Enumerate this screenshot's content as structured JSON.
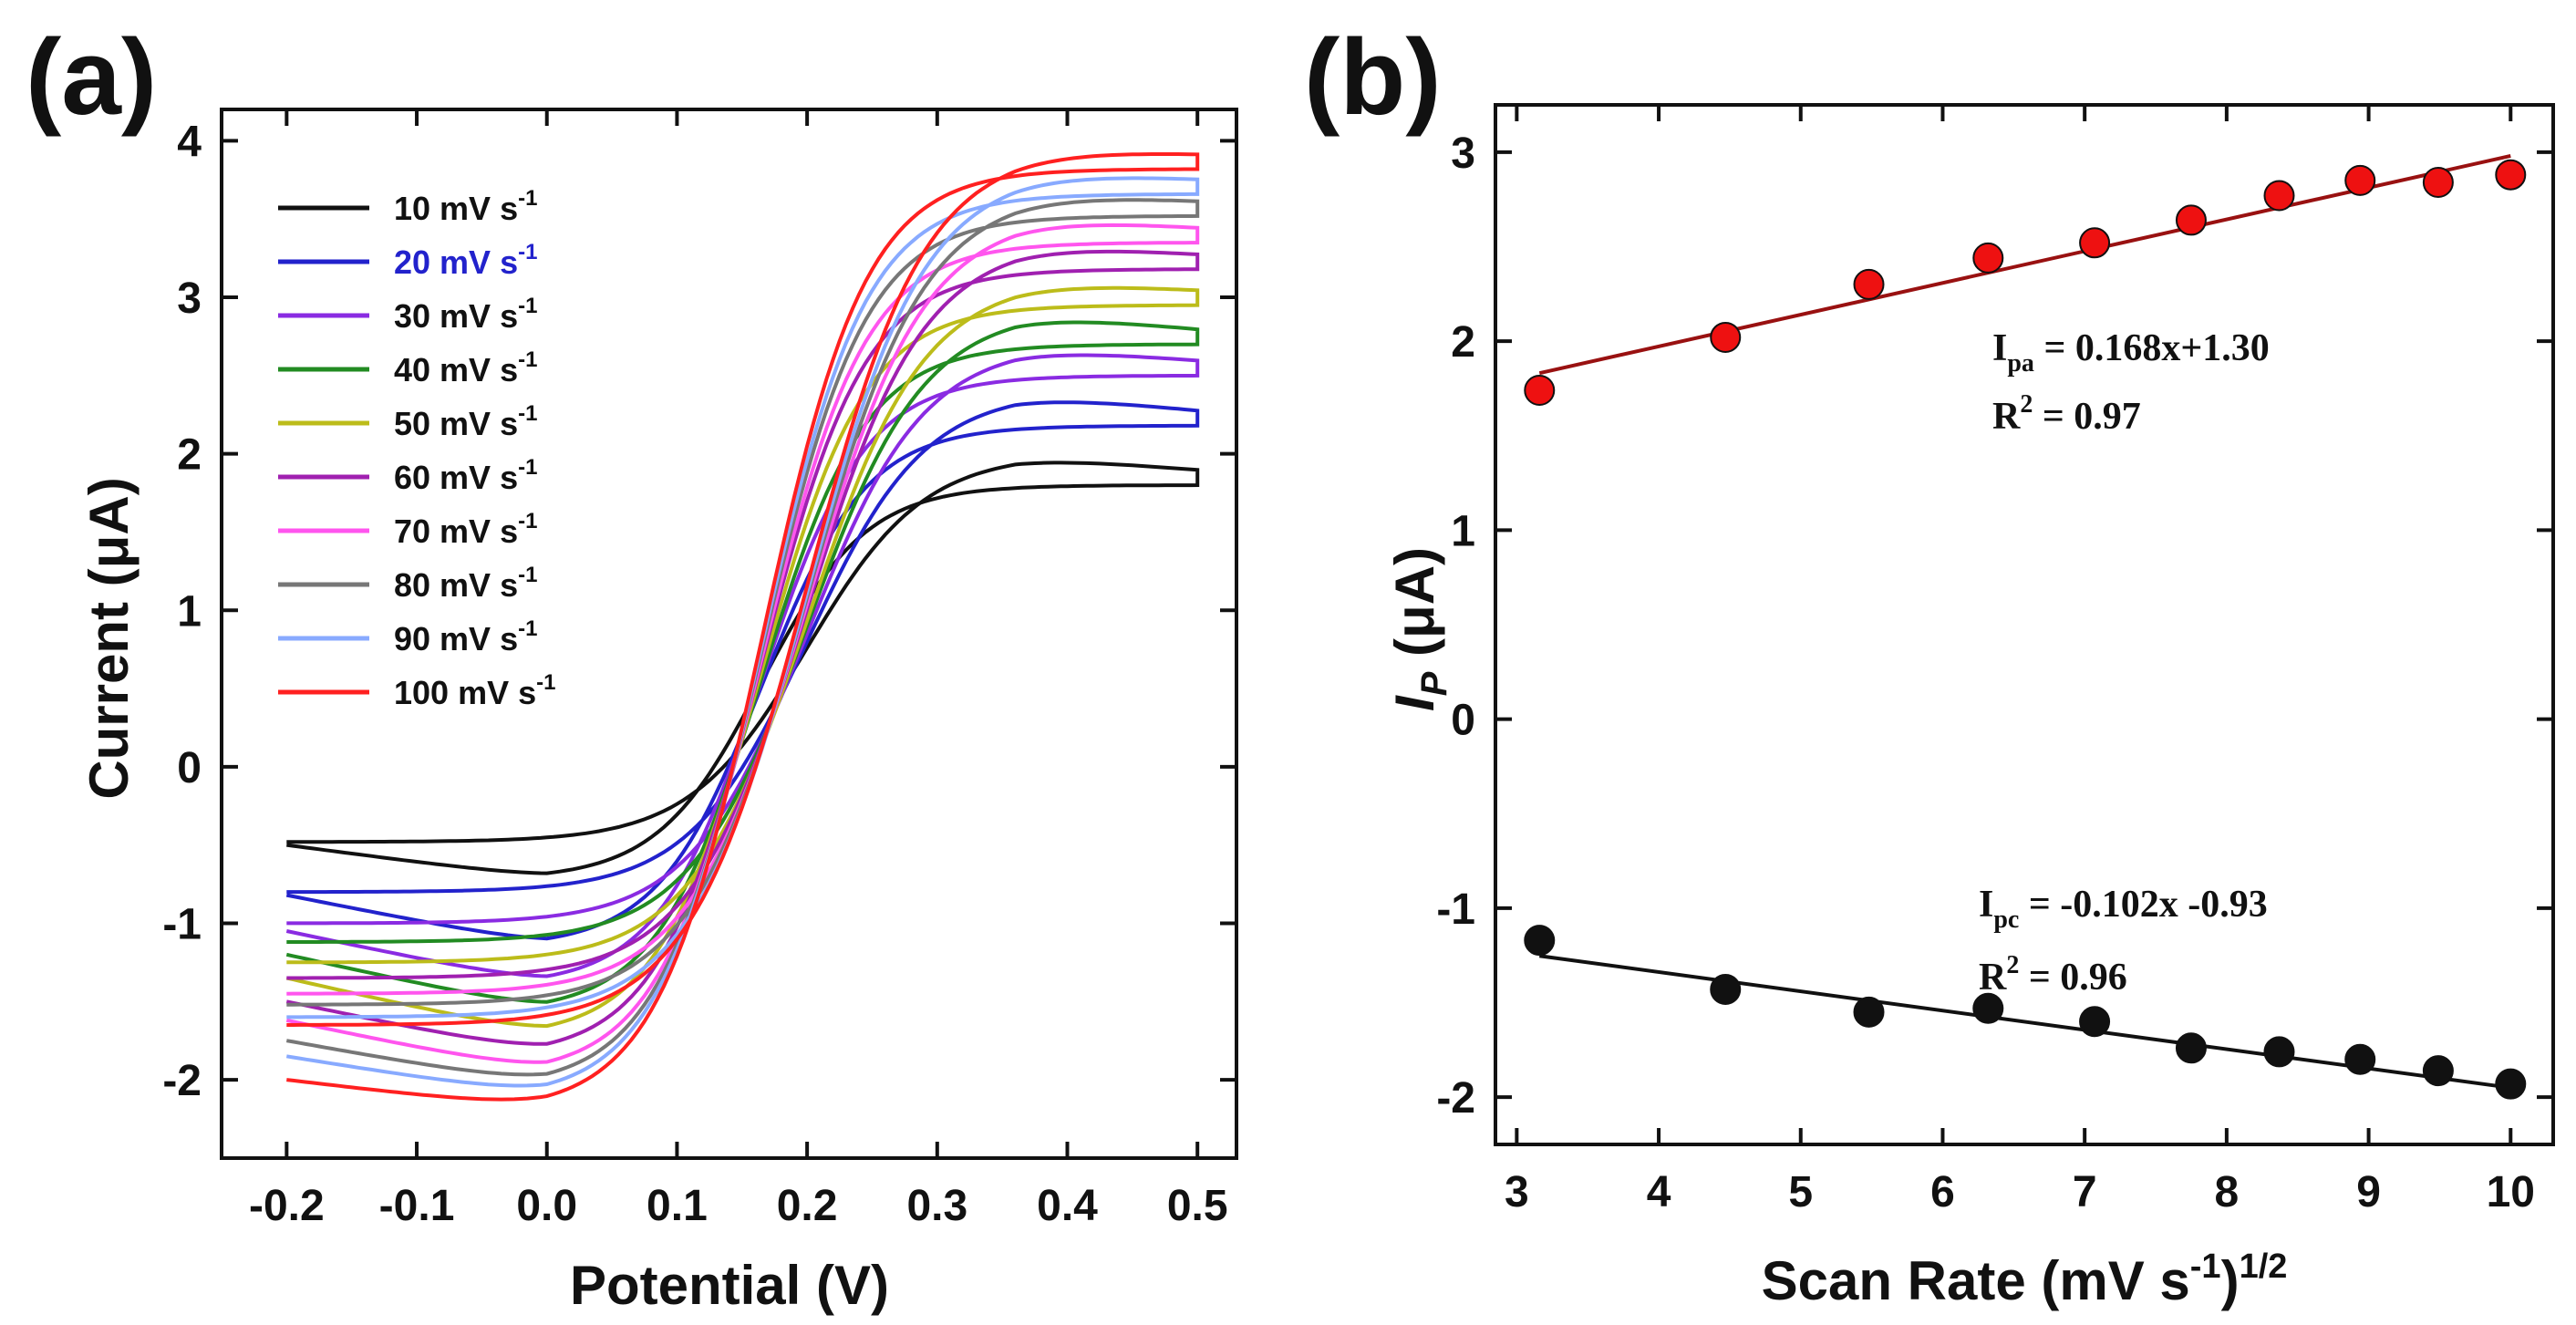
{
  "chart_data": [
    {
      "panel": "(a)",
      "type": "line",
      "xlabel": "Potential (V)",
      "ylabel": "Current (μA)",
      "xlim": [
        -0.25,
        0.53
      ],
      "ylim": [
        -2.5,
        4.2
      ],
      "xticks": [
        "-0.2",
        "-0.1",
        "0.0",
        "0.1",
        "0.2",
        "0.3",
        "0.4",
        "0.5"
      ],
      "yticks": [
        "-2",
        "-1",
        "0",
        "1",
        "2",
        "3",
        "4"
      ],
      "legend_position": "top-left",
      "series": [
        {
          "name": "10 mV s-1",
          "label": "10 mV s",
          "sup": "-1",
          "color": "#111111",
          "label_color": "#111111",
          "anodic_plateau": 2.0,
          "cathodic_plateau": -0.72,
          "forward_start": -0.48,
          "reverse_end": -0.5,
          "end_value": 1.9
        },
        {
          "name": "20 mV s-1",
          "label": "20 mV s",
          "sup": "-1",
          "color": "#2222cc",
          "label_color": "#2222cc",
          "anodic_plateau": 2.4,
          "cathodic_plateau": -1.15,
          "forward_start": -0.8,
          "reverse_end": -0.82,
          "end_value": 2.28
        },
        {
          "name": "30 mV s-1",
          "label": "30 mV s",
          "sup": "-1",
          "color": "#8a2be2",
          "label_color": "#111111",
          "anodic_plateau": 2.7,
          "cathodic_plateau": -1.4,
          "forward_start": -1.0,
          "reverse_end": -1.05,
          "end_value": 2.6
        },
        {
          "name": "40 mV s-1",
          "label": "40 mV s",
          "sup": "-1",
          "color": "#228b22",
          "label_color": "#111111",
          "anodic_plateau": 2.92,
          "cathodic_plateau": -1.57,
          "forward_start": -1.12,
          "reverse_end": -1.2,
          "end_value": 2.8
        },
        {
          "name": "50 mV s-1",
          "label": "50 mV s",
          "sup": "-1",
          "color": "#bcbc1a",
          "label_color": "#111111",
          "anodic_plateau": 3.12,
          "cathodic_plateau": -1.73,
          "forward_start": -1.25,
          "reverse_end": -1.35,
          "end_value": 3.05
        },
        {
          "name": "60 mV s-1",
          "label": "60 mV s",
          "sup": "-1",
          "color": "#a020b0",
          "label_color": "#111111",
          "anodic_plateau": 3.36,
          "cathodic_plateau": -1.85,
          "forward_start": -1.35,
          "reverse_end": -1.5,
          "end_value": 3.28
        },
        {
          "name": "70 mV s-1",
          "label": "70 mV s",
          "sup": "-1",
          "color": "#ff55ee",
          "label_color": "#111111",
          "anodic_plateau": 3.53,
          "cathodic_plateau": -1.97,
          "forward_start": -1.45,
          "reverse_end": -1.62,
          "end_value": 3.45
        },
        {
          "name": "80 mV s-1",
          "label": "80 mV s",
          "sup": "-1",
          "color": "#777777",
          "label_color": "#111111",
          "anodic_plateau": 3.68,
          "cathodic_plateau": -2.05,
          "forward_start": -1.52,
          "reverse_end": -1.75,
          "end_value": 3.62
        },
        {
          "name": "90 mV s-1",
          "label": "90 mV s",
          "sup": "-1",
          "color": "#88aaff",
          "label_color": "#111111",
          "anodic_plateau": 3.82,
          "cathodic_plateau": -2.12,
          "forward_start": -1.6,
          "reverse_end": -1.85,
          "end_value": 3.76
        },
        {
          "name": "100 mV s-1",
          "label": "100 mV s",
          "sup": "-1",
          "color": "#ff2020",
          "label_color": "#111111",
          "anodic_plateau": 3.96,
          "cathodic_plateau": -2.2,
          "forward_start": -1.65,
          "reverse_end": -2.0,
          "end_value": 3.92
        }
      ]
    },
    {
      "panel": "(b)",
      "type": "scatter",
      "xlabel": "Scan Rate (mV s",
      "xlabel_sup1": "-1",
      "xlabel_mid": ")",
      "xlabel_sup2": "1/2",
      "ylabel_main": "I",
      "ylabel_sub": "P",
      "ylabel_unit": " (μA)",
      "xlim": [
        2.85,
        10.3
      ],
      "ylim": [
        -2.25,
        3.25
      ],
      "xticks": [
        "3",
        "4",
        "5",
        "6",
        "7",
        "8",
        "9",
        "10"
      ],
      "yticks": [
        "-2",
        "-1",
        "0",
        "1",
        "2",
        "3"
      ],
      "series": [
        {
          "name": "Ipa",
          "color": "#ee1111",
          "fit_color": "#991111",
          "x": [
            3.16,
            4.47,
            5.48,
            6.32,
            7.07,
            7.75,
            8.37,
            8.94,
            9.49,
            10.0
          ],
          "y": [
            1.74,
            2.02,
            2.3,
            2.44,
            2.52,
            2.64,
            2.77,
            2.85,
            2.84,
            2.88
          ],
          "fit": {
            "slope": 0.168,
            "intercept": 1.3
          },
          "eq_main": "I",
          "eq_sub": "pa",
          "eq_rest": " = 0.168x+1.30",
          "r2_label": "R",
          "r2_sup": "2",
          "r2_rest": " = 0.97"
        },
        {
          "name": "Ipc",
          "color": "#111111",
          "fit_color": "#111111",
          "x": [
            3.16,
            4.47,
            5.48,
            6.32,
            7.07,
            7.75,
            8.37,
            8.94,
            9.49,
            10.0
          ],
          "y": [
            -1.17,
            -1.43,
            -1.55,
            -1.53,
            -1.6,
            -1.74,
            -1.76,
            -1.8,
            -1.86,
            -1.93
          ],
          "fit": {
            "slope": -0.102,
            "intercept": -0.93
          },
          "eq_main": "I",
          "eq_sub": "pc",
          "eq_rest": " = -0.102x -0.93",
          "r2_label": "R",
          "r2_sup": "2",
          "r2_rest": " = 0.96"
        }
      ]
    }
  ]
}
